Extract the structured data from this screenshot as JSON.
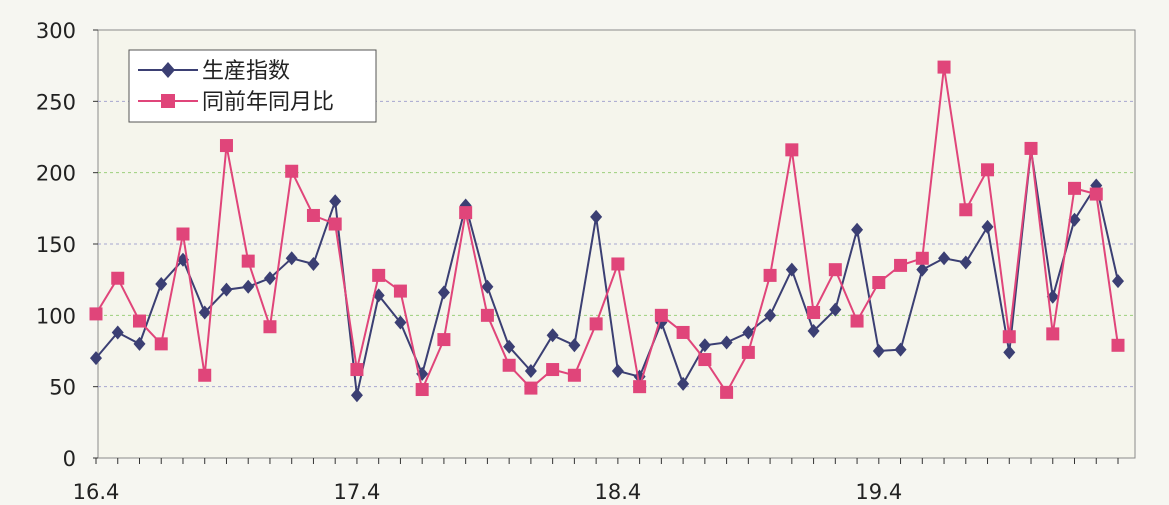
{
  "chart_data": {
    "type": "line",
    "title": "",
    "xlabel": "",
    "ylabel": "",
    "ylim": [
      0,
      300
    ],
    "yticks": [
      "0",
      "50",
      "100",
      "150",
      "200",
      "250",
      "300"
    ],
    "x_tick_labels": [
      {
        "index": 0,
        "label": "16.4"
      },
      {
        "index": 12,
        "label": "17.4"
      },
      {
        "index": 24,
        "label": "18.4"
      },
      {
        "index": 36,
        "label": "19.4"
      }
    ],
    "grid": true,
    "legend_position": "top-left",
    "series": [
      {
        "name": "生産指数",
        "color": "#3b3f73",
        "marker": "diamond",
        "values": [
          70,
          88,
          80,
          122,
          139,
          102,
          118,
          120,
          126,
          140,
          136,
          180,
          44,
          114,
          95,
          59,
          116,
          177,
          120,
          78,
          61,
          86,
          79,
          169,
          61,
          57,
          95,
          52,
          79,
          81,
          88,
          100,
          132,
          89,
          104,
          160,
          75,
          76,
          132,
          140,
          137,
          162,
          74,
          216,
          113,
          167,
          191,
          124
        ]
      },
      {
        "name": "同前年同月比",
        "color": "#e0457a",
        "marker": "square",
        "values": [
          101,
          126,
          96,
          80,
          157,
          58,
          219,
          138,
          92,
          201,
          170,
          164,
          62,
          128,
          117,
          48,
          83,
          172,
          100,
          65,
          49,
          62,
          58,
          94,
          136,
          50,
          100,
          88,
          69,
          46,
          74,
          128,
          216,
          102,
          132,
          96,
          123,
          135,
          140,
          274,
          174,
          202,
          85,
          217,
          87,
          189,
          185,
          79
        ]
      }
    ]
  }
}
